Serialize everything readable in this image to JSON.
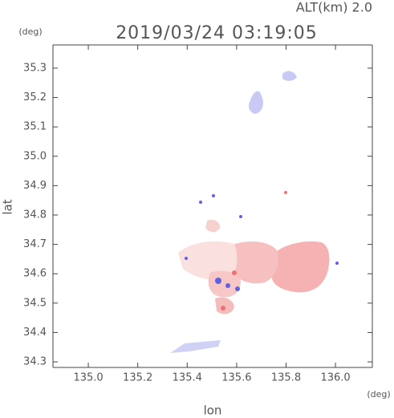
{
  "header": {
    "altitude": "ALT(km) 2.0",
    "timestamp": "2019/03/24 03:19:05"
  },
  "chart_data": {
    "type": "map",
    "title": "2019/03/24 03:19:05",
    "xlabel": "lon",
    "xunit": "(deg)",
    "ylabel": "lat",
    "yunit": "(deg)",
    "xlim": [
      134.857,
      136.149
    ],
    "ylim": [
      34.281,
      35.379
    ],
    "xticks": [
      {
        "value": 135,
        "label": "135.0"
      },
      {
        "value": 135.2,
        "label": "135.2"
      },
      {
        "value": 135.4,
        "label": "135.4"
      },
      {
        "value": 135.6,
        "label": "135.6"
      },
      {
        "value": 135.8,
        "label": "135.8"
      },
      {
        "value": 136,
        "label": "136.0"
      }
    ],
    "yticks": [
      {
        "value": 34.3,
        "label": "34.3"
      },
      {
        "value": 34.4,
        "label": "34.4"
      },
      {
        "value": 34.5,
        "label": "34.5"
      },
      {
        "value": 34.6,
        "label": "34.6"
      },
      {
        "value": 34.7,
        "label": "34.7"
      },
      {
        "value": 34.8,
        "label": "34.8"
      },
      {
        "value": 34.9,
        "label": "34.9"
      },
      {
        "value": 35,
        "label": "35.0"
      },
      {
        "value": 35.1,
        "label": "35.1"
      },
      {
        "value": 35.2,
        "label": "35.2"
      },
      {
        "value": 35.3,
        "label": "35.3"
      }
    ]
  }
}
